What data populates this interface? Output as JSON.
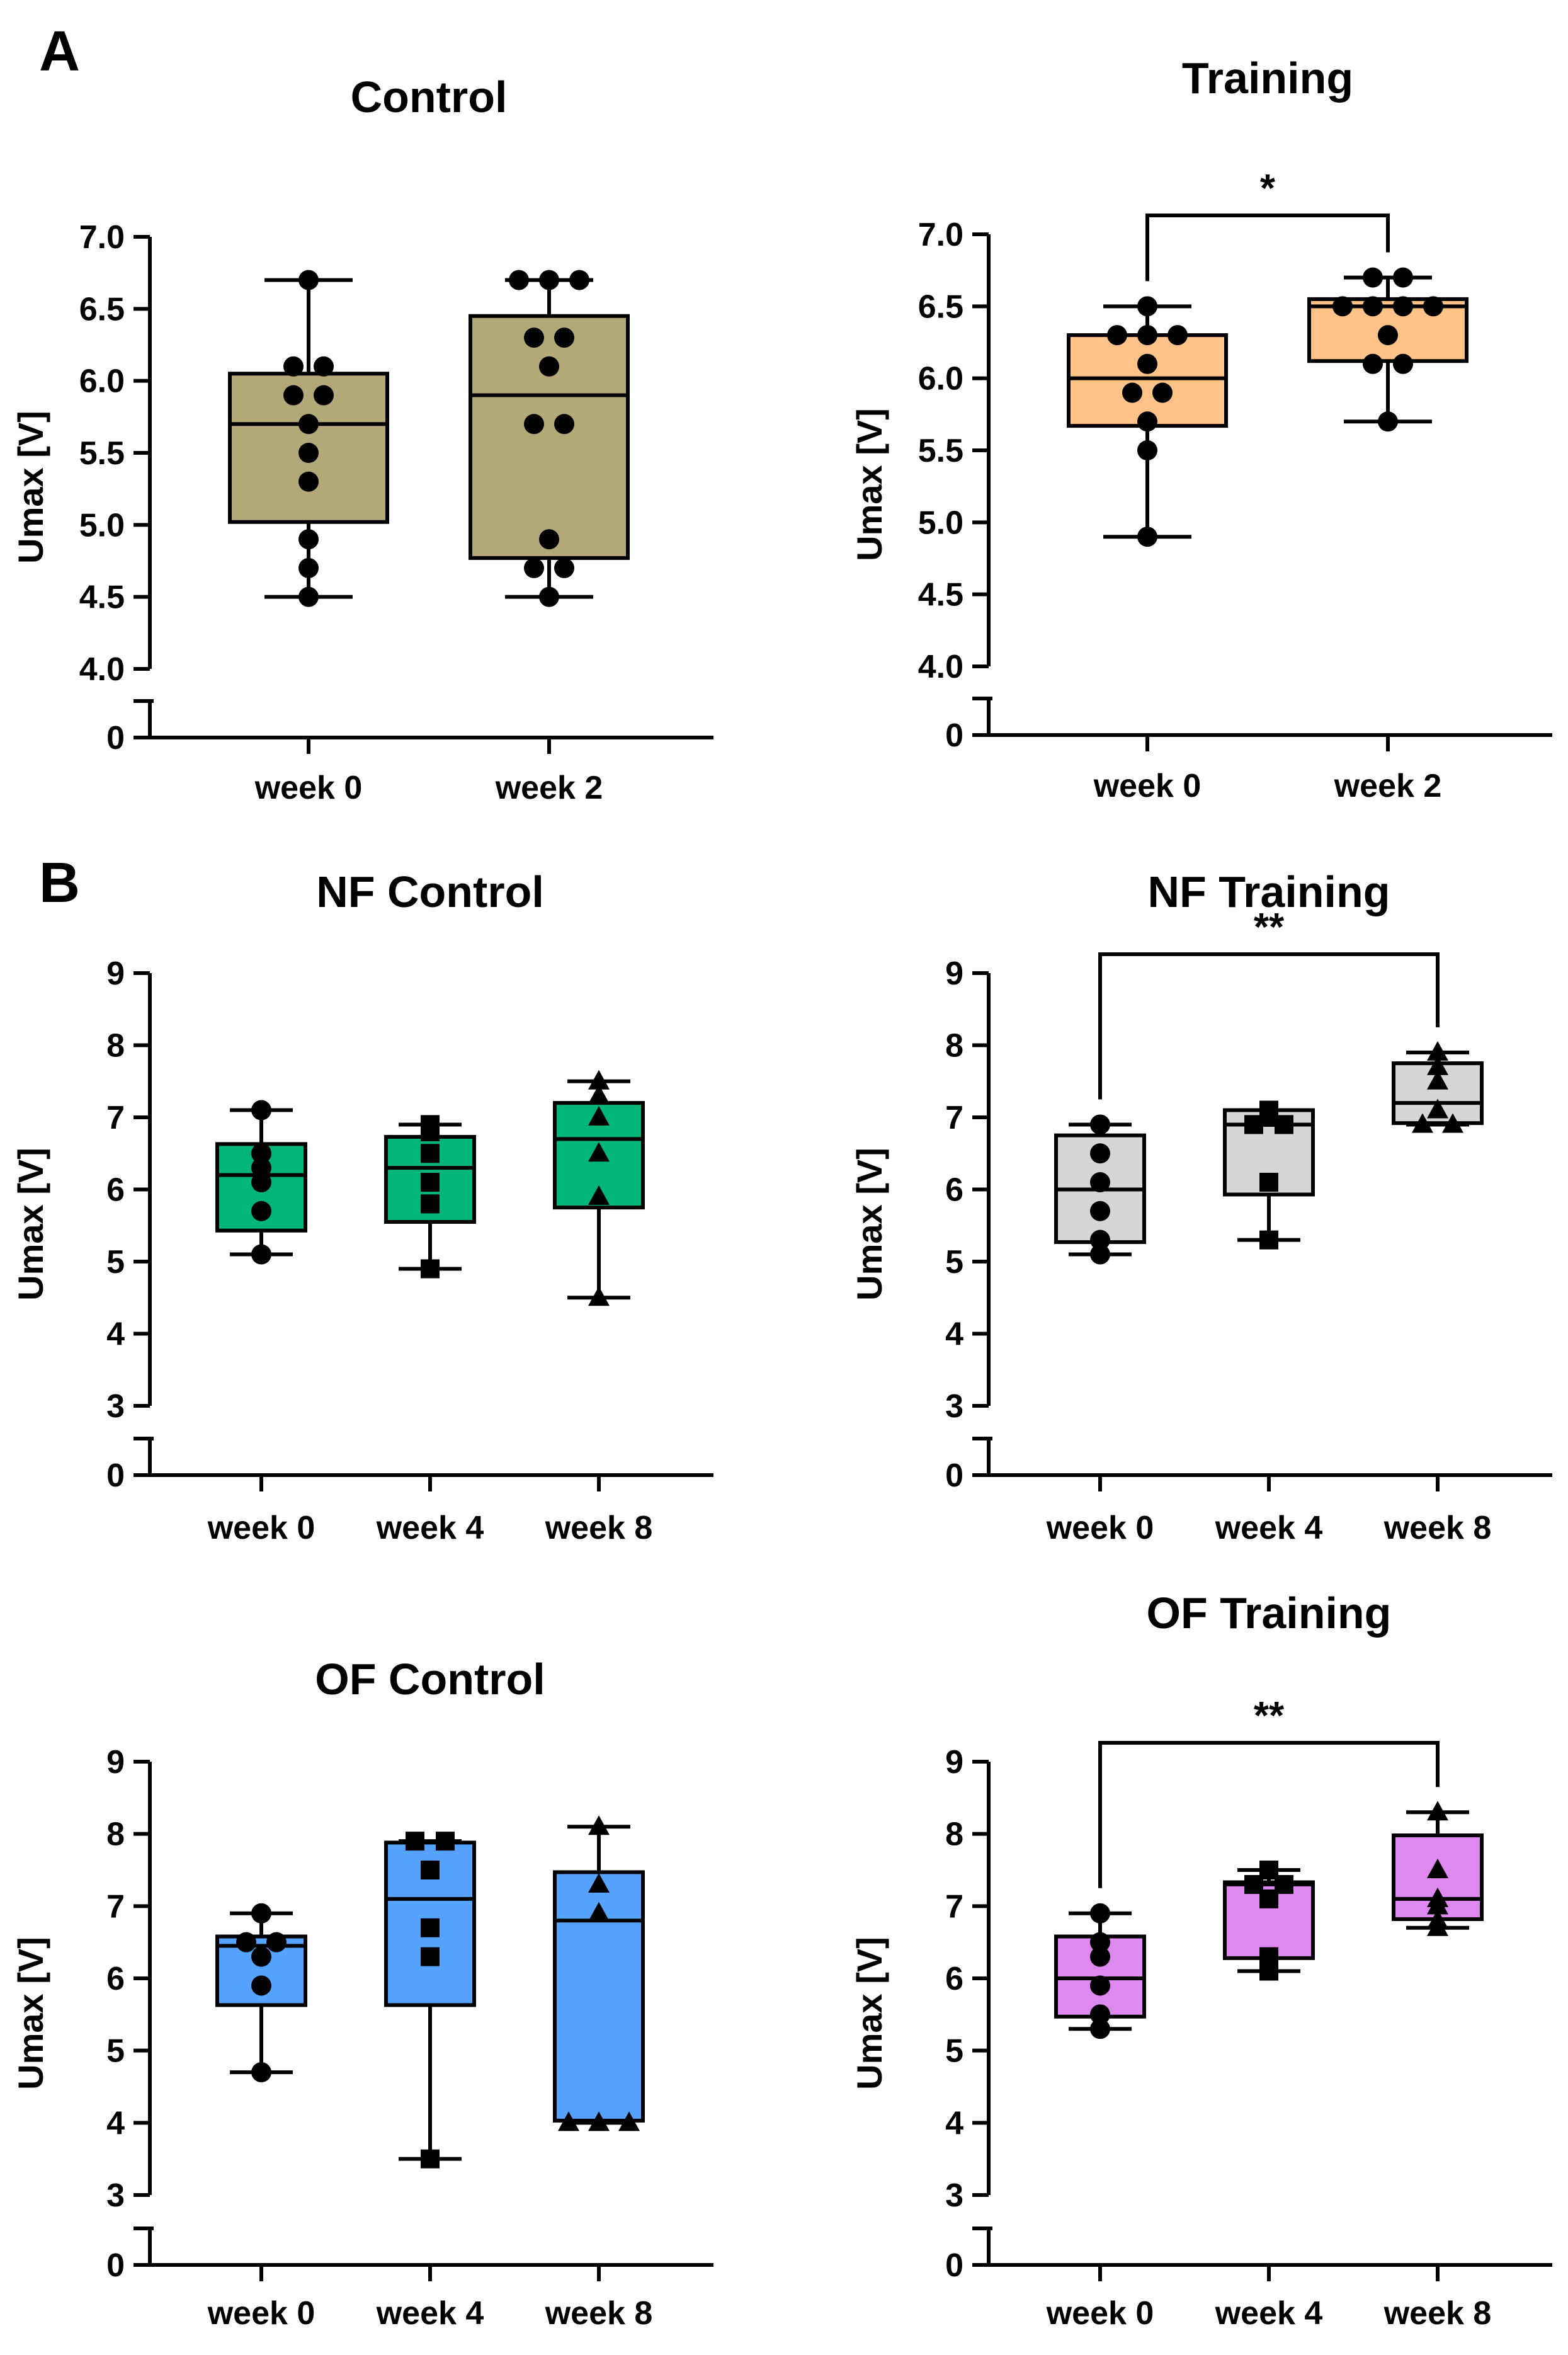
{
  "panel_labels": [
    "A",
    "B"
  ],
  "chart_data": [
    {
      "type": "box",
      "title": "Control",
      "panel": "A",
      "ylabel": "Umax [V]",
      "ylim": [
        4.0,
        7.0
      ],
      "yticks": [
        "4.0",
        "4.5",
        "5.0",
        "5.5",
        "6.0",
        "6.5",
        "7.0"
      ],
      "ybreak_zero": "0",
      "categories": [
        "week 0",
        "week 2"
      ],
      "marker": "circle",
      "fill": "#b3a877",
      "boxes": [
        {
          "min": 4.5,
          "q1": 5.02,
          "median": 5.7,
          "q3": 6.05,
          "max": 6.7
        },
        {
          "min": 4.5,
          "q1": 4.77,
          "median": 5.9,
          "q3": 6.45,
          "max": 6.7
        }
      ],
      "points": [
        [
          6.7,
          6.1,
          6.1,
          5.9,
          5.9,
          5.7,
          5.5,
          5.3,
          4.9,
          4.7,
          4.5
        ],
        [
          6.7,
          6.7,
          6.7,
          6.3,
          6.3,
          6.1,
          5.7,
          5.7,
          4.9,
          4.7,
          4.7,
          4.5
        ]
      ],
      "significance": null
    },
    {
      "type": "box",
      "title": "Training",
      "panel": "A",
      "ylabel": "Umax [V]",
      "ylim": [
        4.0,
        7.0
      ],
      "yticks": [
        "4.0",
        "4.5",
        "5.0",
        "5.5",
        "6.0",
        "6.5",
        "7.0"
      ],
      "ybreak_zero": "0",
      "categories": [
        "week 0",
        "week 2"
      ],
      "marker": "circle",
      "fill": "#ffc287",
      "boxes": [
        {
          "min": 4.9,
          "q1": 5.67,
          "median": 6.0,
          "q3": 6.3,
          "max": 6.5
        },
        {
          "min": 5.7,
          "q1": 6.12,
          "median": 6.5,
          "q3": 6.55,
          "max": 6.7
        }
      ],
      "points": [
        [
          6.5,
          6.3,
          6.3,
          6.3,
          6.1,
          5.9,
          5.9,
          5.7,
          5.5,
          4.9
        ],
        [
          6.7,
          6.7,
          6.5,
          6.5,
          6.5,
          6.5,
          6.3,
          6.1,
          6.1,
          5.7
        ]
      ],
      "significance": {
        "from": 0,
        "to": 1,
        "label": "*"
      }
    },
    {
      "type": "box",
      "title": "NF Control",
      "panel": "B",
      "ylabel": "Umax [V]",
      "ylim": [
        3,
        9
      ],
      "yticks": [
        "3",
        "4",
        "5",
        "6",
        "7",
        "8",
        "9"
      ],
      "ybreak_zero": "0",
      "categories": [
        "week 0",
        "week 4",
        "week 8"
      ],
      "fill": "#00b579",
      "markers": [
        "circle",
        "square",
        "triangle"
      ],
      "boxes": [
        {
          "min": 5.1,
          "q1": 5.43,
          "median": 6.2,
          "q3": 6.63,
          "max": 7.1
        },
        {
          "min": 4.9,
          "q1": 5.55,
          "median": 6.3,
          "q3": 6.73,
          "max": 6.9
        },
        {
          "min": 4.5,
          "q1": 5.75,
          "median": 6.7,
          "q3": 7.2,
          "max": 7.5
        }
      ],
      "points": [
        [
          7.1,
          6.5,
          6.3,
          6.1,
          5.7,
          5.1
        ],
        [
          6.9,
          6.8,
          6.5,
          6.1,
          5.8,
          4.9
        ],
        [
          7.5,
          7.3,
          7.0,
          6.5,
          5.9,
          4.5
        ]
      ],
      "significance": null
    },
    {
      "type": "box",
      "title": "NF Training",
      "panel": "B",
      "ylabel": "Umax [V]",
      "ylim": [
        3,
        9
      ],
      "yticks": [
        "3",
        "4",
        "5",
        "6",
        "7",
        "8",
        "9"
      ],
      "ybreak_zero": "0",
      "categories": [
        "week 0",
        "week 4",
        "week 8"
      ],
      "fill": "#d6d6d6",
      "markers": [
        "circle",
        "square",
        "triangle"
      ],
      "boxes": [
        {
          "min": 5.1,
          "q1": 5.27,
          "median": 6.0,
          "q3": 6.75,
          "max": 6.9
        },
        {
          "min": 5.3,
          "q1": 5.93,
          "median": 6.9,
          "q3": 7.1,
          "max": 7.1
        },
        {
          "min": 6.9,
          "q1": 6.92,
          "median": 7.2,
          "q3": 7.75,
          "max": 7.9
        }
      ],
      "points": [
        [
          6.9,
          6.5,
          6.1,
          5.7,
          5.3,
          5.1
        ],
        [
          7.1,
          7.0,
          6.9,
          6.9,
          6.1,
          5.3
        ],
        [
          7.9,
          7.7,
          7.5,
          7.1,
          6.9,
          6.9
        ]
      ],
      "significance": {
        "from": 0,
        "to": 2,
        "label": "**"
      }
    },
    {
      "type": "box",
      "title": "OF Control",
      "panel": "B",
      "ylabel": "Umax [V]",
      "ylim": [
        3,
        9
      ],
      "yticks": [
        "3",
        "4",
        "5",
        "6",
        "7",
        "8",
        "9"
      ],
      "ybreak_zero": "0",
      "categories": [
        "week 0",
        "week 4",
        "week 8"
      ],
      "fill": "#55a3ff",
      "markers": [
        "circle",
        "square",
        "triangle"
      ],
      "boxes": [
        {
          "min": 4.7,
          "q1": 5.63,
          "median": 6.45,
          "q3": 6.58,
          "max": 6.9
        },
        {
          "min": 3.5,
          "q1": 5.63,
          "median": 7.1,
          "q3": 7.88,
          "max": 7.9
        },
        {
          "min": 4.0,
          "q1": 4.03,
          "median": 6.8,
          "q3": 7.47,
          "max": 8.1
        }
      ],
      "points": [
        [
          6.9,
          6.5,
          6.5,
          6.3,
          5.9,
          4.7
        ],
        [
          7.9,
          7.9,
          7.5,
          6.7,
          6.3,
          3.5
        ],
        [
          8.1,
          7.3,
          6.9,
          4.0,
          4.0,
          4.0
        ]
      ],
      "significance": null
    },
    {
      "type": "box",
      "title": "OF Training",
      "panel": "B",
      "ylabel": "Umax [V]",
      "ylim": [
        3,
        9
      ],
      "yticks": [
        "3",
        "4",
        "5",
        "6",
        "7",
        "8",
        "9"
      ],
      "ybreak_zero": "0",
      "categories": [
        "week 0",
        "week 4",
        "week 8"
      ],
      "fill": "#dd89ef",
      "markers": [
        "circle",
        "square",
        "triangle"
      ],
      "boxes": [
        {
          "min": 5.3,
          "q1": 5.47,
          "median": 6.0,
          "q3": 6.58,
          "max": 6.9
        },
        {
          "min": 6.1,
          "q1": 6.28,
          "median": 7.3,
          "q3": 7.33,
          "max": 7.5
        },
        {
          "min": 6.7,
          "q1": 6.82,
          "median": 7.1,
          "q3": 7.98,
          "max": 8.3
        }
      ],
      "points": [
        [
          6.9,
          6.5,
          6.3,
          5.9,
          5.5,
          5.3
        ],
        [
          7.5,
          7.3,
          7.3,
          7.1,
          6.3,
          6.1
        ],
        [
          8.3,
          7.5,
          7.1,
          7.0,
          6.8,
          6.7
        ]
      ],
      "significance": {
        "from": 0,
        "to": 2,
        "label": "**"
      }
    }
  ]
}
